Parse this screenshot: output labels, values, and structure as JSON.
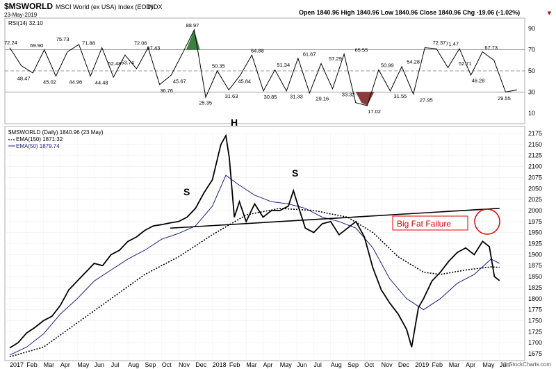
{
  "header": {
    "symbol": "$MSWORLD",
    "name": "MSCI World (ex USA) Index (EOD)",
    "exchange": "INDX",
    "date": "23-May-2019",
    "ohlc_text": "Open 1840.96  High 1840.96  Low 1840.96  Close 1840.96  Chg -19.06 (-1.02%)",
    "watermark": "© StockCharts.com"
  },
  "colors": {
    "price": "#000000",
    "ema50": "#1c1c8c",
    "ema150": "#000000",
    "rsi_over": "#3f7f3f",
    "rsi_under": "#8c3a3a",
    "failure_text": "#dd0000",
    "failure_circle": "#dd0000"
  },
  "rsi_panel": {
    "label": "RSI(14) 32.10",
    "right_ticks": [
      "90",
      "70",
      "50",
      "30",
      "10"
    ],
    "annotations": [
      "72.24",
      "48.47",
      "69.90",
      "45.02",
      "75.73",
      "44.96",
      "71.88",
      "44.48",
      "52.48",
      "53.74",
      "72.06",
      "67.43",
      "36.76",
      "45.67",
      "88.97",
      "25.35",
      "50.35",
      "31.63",
      "45.84",
      "64.88",
      "30.85",
      "51.34",
      "31.33",
      "61.67",
      "29.16",
      "57.29",
      "33.32",
      "65.55",
      "17.02",
      "50.99",
      "31.55",
      "54.28",
      "27.95",
      "72.37",
      "71.47",
      "52.71",
      "46.28",
      "67.73",
      "29.55"
    ]
  },
  "price_panel": {
    "legend": [
      "$MSWORLD (Daily) 1840.96 (23 May)",
      "EMA(150) 1871.32",
      "EMA(50) 1879.74"
    ],
    "pattern_labels": {
      "left_shoulder": "S",
      "head": "H",
      "right_shoulder": "S"
    },
    "callout": "Big Fat Failure"
  },
  "chart_data": {
    "type": "line",
    "ylim": [
      1675,
      2175
    ],
    "y_ticks": [
      2175,
      2150,
      2125,
      2100,
      2075,
      2050,
      2025,
      2000,
      1975,
      1950,
      1925,
      1900,
      1875,
      1850,
      1825,
      1800,
      1775,
      1750,
      1725,
      1700,
      1675
    ],
    "x_ticks": [
      "2017",
      "Feb",
      "Mar",
      "Apr",
      "May",
      "Jun",
      "Jul",
      "Aug",
      "Sep",
      "Oct",
      "Nov",
      "Dec",
      "2018",
      "Feb",
      "Mar",
      "Apr",
      "May",
      "Jun",
      "Jul",
      "Aug",
      "Sep",
      "Oct",
      "Nov",
      "Dec",
      "2019",
      "Feb",
      "Mar",
      "Apr",
      "May",
      "Jun"
    ],
    "x_bold": [
      "2017",
      "2018",
      "2019"
    ],
    "x_unit": "months since Jan 2017",
    "series": [
      {
        "name": "$MSWORLD (Daily)",
        "points": [
          [
            0,
            1688
          ],
          [
            0.5,
            1700
          ],
          [
            1,
            1722
          ],
          [
            1.5,
            1735
          ],
          [
            2,
            1750
          ],
          [
            2.5,
            1760
          ],
          [
            3,
            1785
          ],
          [
            3.5,
            1820
          ],
          [
            4,
            1840
          ],
          [
            4.5,
            1860
          ],
          [
            5,
            1880
          ],
          [
            5.5,
            1875
          ],
          [
            6,
            1900
          ],
          [
            6.5,
            1910
          ],
          [
            7,
            1930
          ],
          [
            7.5,
            1940
          ],
          [
            8,
            1955
          ],
          [
            8.5,
            1965
          ],
          [
            9,
            1968
          ],
          [
            9.5,
            1972
          ],
          [
            10,
            1975
          ],
          [
            10.5,
            1985
          ],
          [
            11,
            2005
          ],
          [
            11.5,
            2040
          ],
          [
            12,
            2070
          ],
          [
            12.5,
            2150
          ],
          [
            12.8,
            2170
          ],
          [
            13,
            2120
          ],
          [
            13.3,
            1985
          ],
          [
            13.6,
            2020
          ],
          [
            14,
            1975
          ],
          [
            14.5,
            2015
          ],
          [
            15,
            1985
          ],
          [
            15.5,
            2000
          ],
          [
            16,
            2000
          ],
          [
            16.5,
            2010
          ],
          [
            16.8,
            2045
          ],
          [
            17,
            2020
          ],
          [
            17.5,
            1960
          ],
          [
            18,
            1950
          ],
          [
            18.5,
            1970
          ],
          [
            19,
            1975
          ],
          [
            19.5,
            1945
          ],
          [
            20,
            1960
          ],
          [
            20.5,
            1975
          ],
          [
            21,
            1940
          ],
          [
            21.5,
            1870
          ],
          [
            22,
            1820
          ],
          [
            22.5,
            1790
          ],
          [
            23,
            1765
          ],
          [
            23.5,
            1730
          ],
          [
            23.8,
            1690
          ],
          [
            24.2,
            1780
          ],
          [
            24.5,
            1800
          ],
          [
            25,
            1840
          ],
          [
            25.5,
            1860
          ],
          [
            26,
            1885
          ],
          [
            26.5,
            1905
          ],
          [
            27,
            1915
          ],
          [
            27.5,
            1900
          ],
          [
            28,
            1930
          ],
          [
            28.4,
            1918
          ],
          [
            28.7,
            1850
          ],
          [
            29,
            1841
          ]
        ]
      },
      {
        "name": "EMA(50)",
        "points": [
          [
            0,
            1672
          ],
          [
            1,
            1690
          ],
          [
            2,
            1720
          ],
          [
            3,
            1765
          ],
          [
            4,
            1800
          ],
          [
            5,
            1840
          ],
          [
            6,
            1865
          ],
          [
            7,
            1890
          ],
          [
            8,
            1910
          ],
          [
            9,
            1935
          ],
          [
            10,
            1948
          ],
          [
            11,
            1965
          ],
          [
            12,
            2010
          ],
          [
            12.8,
            2080
          ],
          [
            13.5,
            2060
          ],
          [
            14.5,
            2035
          ],
          [
            15.5,
            2020
          ],
          [
            16.5,
            2015
          ],
          [
            17.5,
            2005
          ],
          [
            18.5,
            1985
          ],
          [
            19.5,
            1975
          ],
          [
            20.5,
            1960
          ],
          [
            21.5,
            1915
          ],
          [
            22.5,
            1845
          ],
          [
            23.5,
            1800
          ],
          [
            24.5,
            1775
          ],
          [
            25.5,
            1800
          ],
          [
            26.5,
            1835
          ],
          [
            27.5,
            1855
          ],
          [
            28.5,
            1890
          ],
          [
            29,
            1880
          ]
        ]
      },
      {
        "name": "EMA(150)",
        "points": [
          [
            0,
            1668
          ],
          [
            2,
            1690
          ],
          [
            4,
            1745
          ],
          [
            6,
            1800
          ],
          [
            8,
            1855
          ],
          [
            10,
            1895
          ],
          [
            12,
            1945
          ],
          [
            14,
            1990
          ],
          [
            16,
            2005
          ],
          [
            18,
            2000
          ],
          [
            20,
            1985
          ],
          [
            21.5,
            1950
          ],
          [
            23,
            1895
          ],
          [
            24.5,
            1860
          ],
          [
            25.5,
            1855
          ],
          [
            27,
            1865
          ],
          [
            28.5,
            1872
          ],
          [
            29,
            1871
          ]
        ]
      }
    ],
    "neckline": [
      [
        9.5,
        1960
      ],
      [
        29,
        2005
      ]
    ],
    "rsi": {
      "ylim": [
        0,
        100
      ],
      "levels": [
        30,
        50,
        70
      ],
      "points": [
        [
          0,
          72
        ],
        [
          0.5,
          55
        ],
        [
          1,
          48
        ],
        [
          1.5,
          70
        ],
        [
          2,
          45
        ],
        [
          2.5,
          68
        ],
        [
          3,
          75
        ],
        [
          3.5,
          45
        ],
        [
          4,
          72
        ],
        [
          4.5,
          44
        ],
        [
          5,
          65
        ],
        [
          5.5,
          52
        ],
        [
          6,
          72
        ],
        [
          6.5,
          37
        ],
        [
          7,
          46
        ],
        [
          7.5,
          67
        ],
        [
          8,
          89
        ],
        [
          8.5,
          25
        ],
        [
          9,
          50
        ],
        [
          9.5,
          32
        ],
        [
          10,
          46
        ],
        [
          10.5,
          65
        ],
        [
          11,
          31
        ],
        [
          11.5,
          51
        ],
        [
          12,
          31
        ],
        [
          12.5,
          62
        ],
        [
          13,
          29
        ],
        [
          13.5,
          57
        ],
        [
          14,
          33
        ],
        [
          14.5,
          66
        ],
        [
          15,
          20
        ],
        [
          15.5,
          17
        ],
        [
          16,
          51
        ],
        [
          16.5,
          31
        ],
        [
          17,
          54
        ],
        [
          17.5,
          28
        ],
        [
          18,
          72
        ],
        [
          18.5,
          71
        ],
        [
          19,
          53
        ],
        [
          19.5,
          71
        ],
        [
          20,
          46
        ],
        [
          20.5,
          68
        ],
        [
          21,
          60
        ],
        [
          21.5,
          30
        ],
        [
          22,
          32
        ]
      ]
    }
  }
}
